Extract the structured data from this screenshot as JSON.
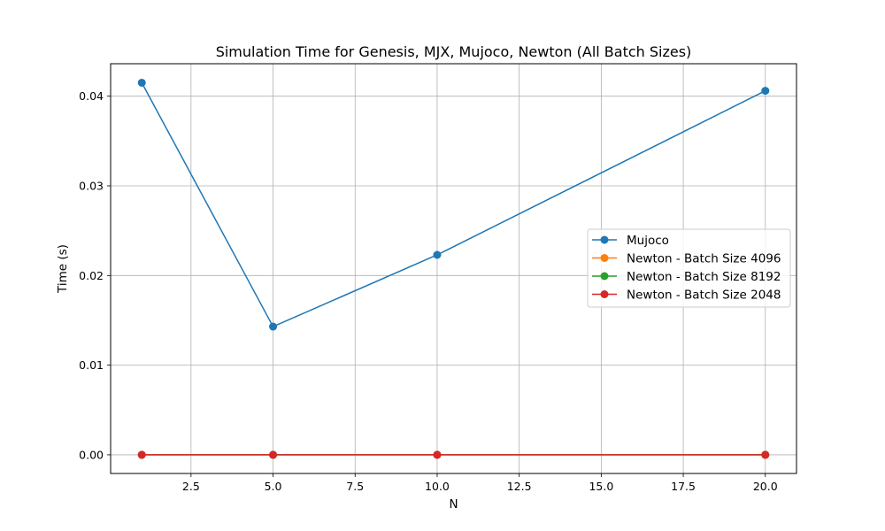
{
  "chart_data": {
    "type": "line",
    "title": "Simulation Time for Genesis, MJX, Mujoco, Newton (All Batch Sizes)",
    "xlabel": "N",
    "ylabel": "Time (s)",
    "xlim": [
      0.05,
      20.95
    ],
    "ylim": [
      -0.00208,
      0.04362
    ],
    "xticks": [
      2.5,
      5.0,
      7.5,
      10.0,
      12.5,
      15.0,
      17.5,
      20.0
    ],
    "xtick_labels": [
      "2.5",
      "5.0",
      "7.5",
      "10.0",
      "12.5",
      "15.0",
      "17.5",
      "20.0"
    ],
    "yticks": [
      0.0,
      0.01,
      0.02,
      0.03,
      0.04
    ],
    "ytick_labels": [
      "0.00",
      "0.01",
      "0.02",
      "0.03",
      "0.04"
    ],
    "grid": true,
    "legend_position": "center-right",
    "x": [
      1,
      5,
      10,
      20
    ],
    "series": [
      {
        "name": "Mujoco",
        "color": "#1f77b4",
        "values": [
          0.0415,
          0.0143,
          0.0223,
          0.0406
        ]
      },
      {
        "name": "Newton - Batch Size 4096",
        "color": "#ff7f0e",
        "values": [
          0.0,
          0.0,
          0.0,
          0.0
        ]
      },
      {
        "name": "Newton - Batch Size 8192",
        "color": "#2ca02c",
        "values": [
          0.0,
          0.0,
          0.0,
          0.0
        ]
      },
      {
        "name": "Newton - Batch Size 2048",
        "color": "#d62728",
        "values": [
          0.0,
          0.0,
          0.0,
          0.0
        ]
      }
    ]
  }
}
